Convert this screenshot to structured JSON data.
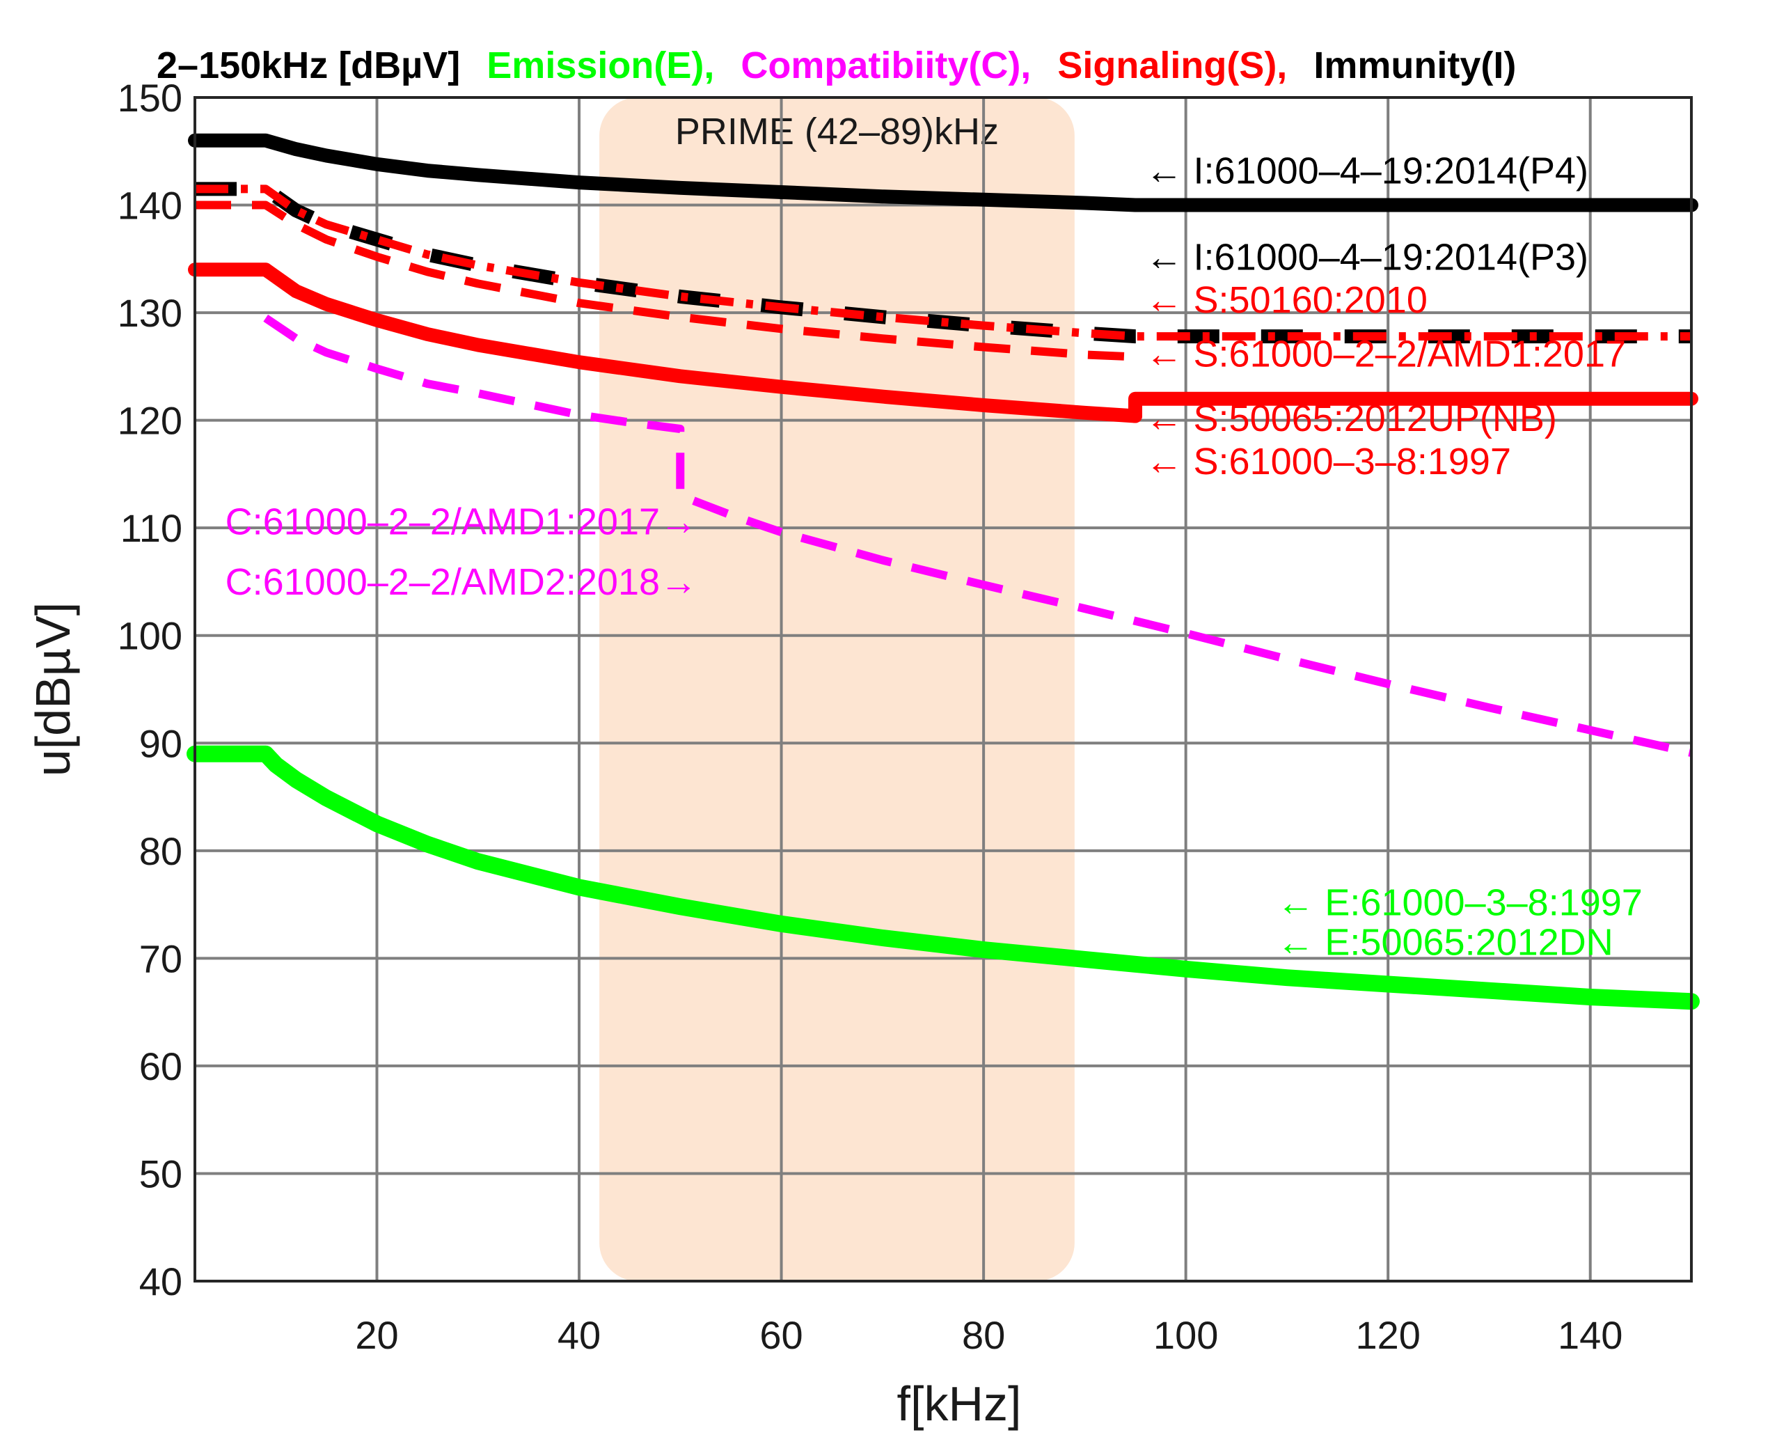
{
  "chart_data": {
    "type": "line",
    "xlabel": "f[kHz]",
    "ylabel": "u[dBµV]",
    "xlim": [
      2,
      150
    ],
    "ylim": [
      40,
      150
    ],
    "xticks": [
      20,
      40,
      60,
      80,
      100,
      120,
      140
    ],
    "yticks": [
      40,
      50,
      60,
      70,
      80,
      90,
      100,
      110,
      120,
      130,
      140,
      150
    ],
    "grid": true,
    "title_segments": [
      {
        "text": "2–150kHz [dBµV]",
        "color": "#000000"
      },
      {
        "text": "Emission(E),",
        "color": "#00ff00"
      },
      {
        "text": "Compatibiity(C),",
        "color": "#ff00ff"
      },
      {
        "text": "Signaling(S),",
        "color": "#ff0000"
      },
      {
        "text": "Immunity(I)",
        "color": "#000000"
      }
    ],
    "band": {
      "label": "PRIME (42–89)kHz",
      "from": 42,
      "to": 89,
      "color": "#fde5d2"
    },
    "series": [
      {
        "name": "I:61000-4-19:2014(P4)",
        "color": "#000000",
        "style": "solid",
        "width": 20,
        "x": [
          2,
          9,
          12,
          15,
          20,
          25,
          30,
          40,
          50,
          60,
          70,
          80,
          90,
          95,
          100,
          110,
          120,
          130,
          140,
          150
        ],
        "y": [
          146,
          146,
          145.2,
          144.6,
          143.8,
          143.2,
          142.8,
          142.1,
          141.6,
          141.2,
          140.8,
          140.5,
          140.2,
          140,
          140,
          140,
          140,
          140,
          140,
          140
        ]
      },
      {
        "name": "I:61000-4-19:2014(P3)",
        "color": "#000000",
        "style": "dash-thick",
        "width": 20,
        "x": [
          2,
          9,
          12,
          15,
          20,
          25,
          30,
          40,
          50,
          60,
          70,
          80,
          90,
          95,
          100,
          110,
          120,
          130,
          140,
          150
        ],
        "y": [
          141.5,
          141.5,
          139.5,
          138.2,
          136.8,
          135.4,
          134.4,
          132.8,
          131.5,
          130.5,
          129.6,
          128.8,
          128.1,
          127.8,
          127.8,
          127.8,
          127.8,
          127.8,
          127.8,
          127.8
        ]
      },
      {
        "name": "S:50160:2010",
        "color": "#ff0000",
        "style": "dashdot",
        "width": 12,
        "x": [
          2,
          9,
          12,
          15,
          20,
          25,
          30,
          40,
          50,
          60,
          70,
          80,
          90,
          95,
          100,
          110,
          120,
          130,
          140,
          150
        ],
        "y": [
          141.5,
          141.5,
          139.5,
          138.2,
          136.8,
          135.4,
          134.4,
          132.8,
          131.5,
          130.5,
          129.6,
          128.8,
          128.1,
          127.8,
          127.8,
          127.8,
          127.8,
          127.8,
          127.8,
          127.8
        ]
      },
      {
        "name": "S:61000-2-2/AMD1:2017",
        "color": "#ff0000",
        "style": "dash",
        "width": 12,
        "x": [
          2,
          9,
          12,
          15,
          20,
          25,
          30,
          40,
          50,
          60,
          70,
          80,
          90,
          95
        ],
        "y": [
          140,
          140,
          138.2,
          136.8,
          135.2,
          133.8,
          132.7,
          130.9,
          129.6,
          128.5,
          127.6,
          126.8,
          126.1,
          125.9
        ]
      },
      {
        "name": "S:50065:2012UP(NB)",
        "color": "#ff0000",
        "style": "solid",
        "width": 20,
        "x": [
          2,
          9,
          12,
          15,
          20,
          25,
          30,
          40,
          50,
          60,
          70,
          80,
          90,
          95
        ],
        "y": [
          134,
          134,
          132,
          130.8,
          129.3,
          128,
          127,
          125.4,
          124.1,
          123.1,
          122.2,
          121.4,
          120.7,
          120.4
        ]
      },
      {
        "name": "S:61000-3-8:1997",
        "color": "#ff0000",
        "style": "solid",
        "width": 20,
        "x": [
          95,
          95,
          100,
          110,
          120,
          130,
          140,
          150
        ],
        "y": [
          120.4,
          122,
          122,
          122,
          122,
          122,
          122,
          122
        ]
      },
      {
        "name": "C:61000-2-2/AMD1:2017 / AMD2:2018",
        "color": "#ff00ff",
        "style": "dash",
        "width": 12,
        "x": [
          9,
          12,
          15,
          20,
          25,
          30,
          40,
          45,
          50,
          50,
          55,
          60,
          70,
          80,
          90,
          100,
          110,
          120,
          130,
          140,
          150
        ],
        "y": [
          129.5,
          127.6,
          126.3,
          124.8,
          123.4,
          122.5,
          120.5,
          119.8,
          119.2,
          113,
          111.2,
          109.6,
          107,
          104.7,
          102.5,
          100.2,
          97.8,
          95.5,
          93.3,
          91.2,
          89.1
        ]
      },
      {
        "name": "E:61000-3-8:1997 / E:50065:2012DN",
        "color": "#00ff00",
        "style": "solid",
        "width": 24,
        "x": [
          2,
          9,
          10,
          12,
          15,
          20,
          25,
          30,
          40,
          50,
          60,
          70,
          80,
          90,
          100,
          110,
          120,
          130,
          140,
          150
        ],
        "y": [
          89,
          89,
          88,
          86.6,
          84.9,
          82.5,
          80.6,
          79,
          76.6,
          74.8,
          73.2,
          71.9,
          70.8,
          69.9,
          69,
          68.2,
          67.6,
          67,
          66.4,
          66
        ]
      }
    ],
    "annotations": [
      {
        "text": "←   I:61000–4–19:2014(P4)",
        "color": "#000000",
        "x": 96,
        "y": 142
      },
      {
        "text": "←   I:61000–4–19:2014(P3)",
        "color": "#000000",
        "x": 96,
        "y": 134
      },
      {
        "text": "←   S:50160:2010",
        "color": "#ff0000",
        "x": 96,
        "y": 130
      },
      {
        "text": "←    S:61000–2–2/AMD1:2017",
        "color": "#ff0000",
        "x": 96,
        "y": 125
      },
      {
        "text": "←    S:50065:2012UP(NB)",
        "color": "#ff0000",
        "x": 96,
        "y": 119
      },
      {
        "text": "←   S:61000–3–8:1997",
        "color": "#ff0000",
        "x": 96,
        "y": 115
      },
      {
        "text": "C:61000–2–2/AMD1:2017→",
        "color": "#ff00ff",
        "x": 5,
        "y": 109.4
      },
      {
        "text": "C:61000–2–2/AMD2:2018→",
        "color": "#ff00ff",
        "x": 5,
        "y": 103.8
      },
      {
        "text": "←    E:61000–3–8:1997",
        "color": "#00ff00",
        "x": 109,
        "y": 74
      },
      {
        "text": "←    E:50065:2012DN",
        "color": "#00ff00",
        "x": 109,
        "y": 70.3
      }
    ]
  }
}
